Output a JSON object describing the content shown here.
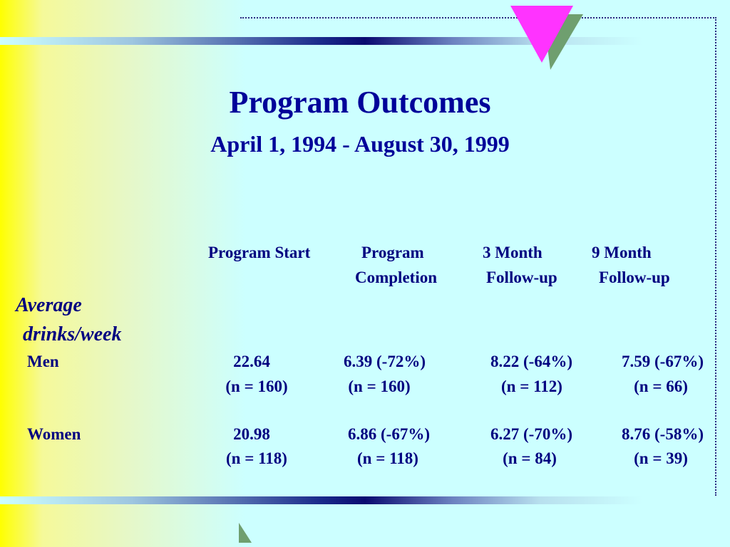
{
  "title": "Program Outcomes",
  "subtitle": "April 1, 1994 - August 30, 1999",
  "columns": [
    {
      "line1": "Program Start",
      "line2": ""
    },
    {
      "line1": "Program",
      "line2": "Completion"
    },
    {
      "line1": "3 Month",
      "line2": "Follow-up"
    },
    {
      "line1": "9 Month",
      "line2": "Follow-up"
    }
  ],
  "row_label_line1": "Average",
  "row_label_line2": "drinks/week",
  "groups": [
    {
      "label": "Men",
      "values": [
        "22.64",
        "6.39 (-72%)",
        "8.22 (-64%)",
        "7.59 (-67%)"
      ],
      "ns": [
        "(n = 160)",
        "(n = 160)",
        "(n = 112)",
        "(n = 66)"
      ]
    },
    {
      "label": "Women",
      "values": [
        "20.98",
        "6.86 (-67%)",
        "6.27 (-70%)",
        "8.76 (-58%)"
      ],
      "ns": [
        "(n = 118)",
        "(n = 118)",
        "(n = 84)",
        "(n = 39)"
      ]
    }
  ],
  "colors": {
    "text": "#000080",
    "background": "#ccffff",
    "left_gradient": "#ffff00",
    "triangle_magenta": "#ff33ff",
    "triangle_green": "#6f9f6f"
  }
}
